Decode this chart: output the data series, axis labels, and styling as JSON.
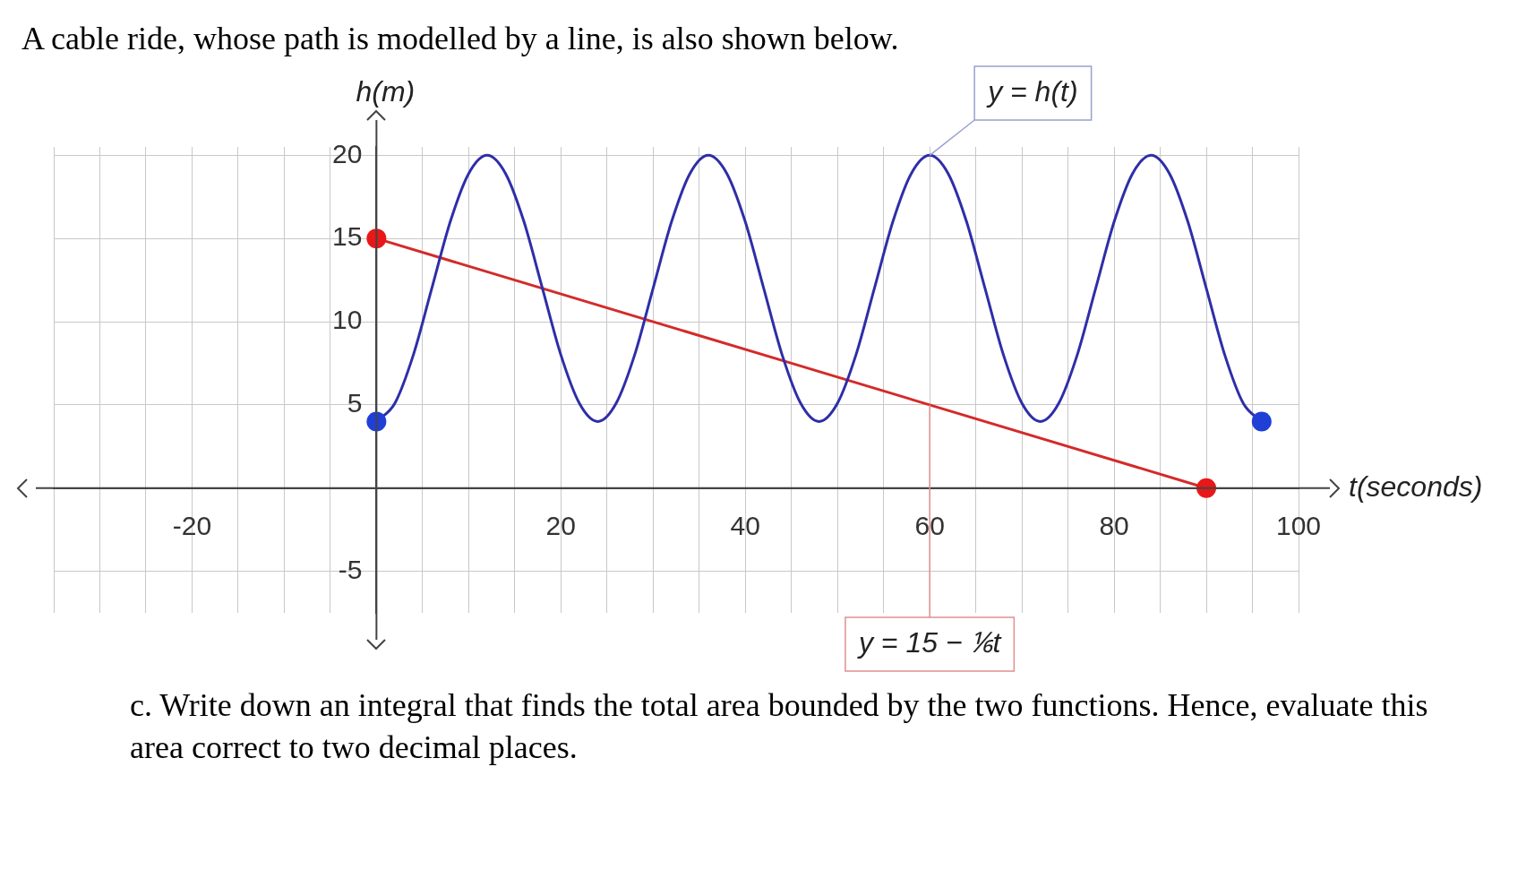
{
  "chart_data": {
    "type": "line",
    "title": "A cable ride, whose path is modelled by a line, is also shown below.",
    "xlabel": "t(seconds)",
    "ylabel": "h(m)",
    "annotations": [
      {
        "text": "y = h(t)",
        "x": 60,
        "y": 20
      },
      {
        "text": "y = 15 − ⅙t",
        "x": 60,
        "y": 5
      },
      "c. Write down an integral that finds the total area bounded by the two functions. Hence, evaluate this area correct to two decimal places."
    ],
    "series": [
      {
        "type": "line",
        "color": "#2e2ea8",
        "marker": "none",
        "x": [
          0,
          2,
          4,
          6,
          8,
          10,
          12,
          14,
          16,
          18,
          20,
          22,
          24,
          26,
          28,
          30,
          32,
          34,
          36,
          38,
          40,
          42,
          44,
          46,
          48,
          50,
          52,
          54,
          56,
          58,
          60,
          62,
          64,
          66,
          68,
          70,
          72,
          74,
          76,
          78,
          80,
          82,
          84,
          86,
          88,
          90,
          92,
          94,
          96
        ],
        "values": [
          4,
          5.1,
          8,
          12,
          16,
          18.9,
          20,
          18.9,
          16,
          12,
          8,
          5.1,
          4,
          5.1,
          8,
          12,
          16,
          18.9,
          20,
          18.9,
          16,
          12,
          8,
          5.1,
          4,
          5.1,
          8,
          12,
          16,
          18.9,
          20,
          18.9,
          16,
          12,
          8,
          5.1,
          4,
          5.1,
          8,
          12,
          16,
          18.9,
          20,
          18.9,
          16,
          12,
          8,
          5.1,
          4
        ]
      },
      {
        "type": "line",
        "color": "#d42a2a",
        "marker": "none",
        "x": [
          0,
          90
        ],
        "values": [
          15,
          0
        ]
      },
      {
        "type": "scatter",
        "color": "#1f3fd6",
        "marker": "circle",
        "x": [
          0,
          96
        ],
        "values": [
          4,
          4
        ]
      },
      {
        "type": "scatter",
        "color": "#e81818",
        "marker": "circle",
        "x": [
          0,
          90
        ],
        "values": [
          15,
          0
        ]
      }
    ],
    "xlim": [
      -35,
      100
    ],
    "ylim": [
      -7.5,
      20.5
    ],
    "xticks": [
      {
        "value": -35,
        "label": null
      },
      {
        "value": -30,
        "label": null
      },
      {
        "value": -25,
        "label": null
      },
      -20,
      {
        "value": -15,
        "label": null
      },
      {
        "value": -10,
        "label": null
      },
      {
        "value": -5,
        "label": null
      },
      {
        "value": 0,
        "label": null
      },
      {
        "value": 5,
        "label": null
      },
      {
        "value": 10,
        "label": null
      },
      {
        "value": 15,
        "label": null
      },
      20,
      {
        "value": 25,
        "label": null
      },
      {
        "value": 30,
        "label": null
      },
      {
        "value": 35,
        "label": null
      },
      40,
      {
        "value": 45,
        "label": null
      },
      {
        "value": 50,
        "label": null
      },
      {
        "value": 55,
        "label": null
      },
      60,
      {
        "value": 65,
        "label": null
      },
      {
        "value": 70,
        "label": null
      },
      {
        "value": 75,
        "label": null
      },
      80,
      {
        "value": 85,
        "label": null
      },
      {
        "value": 90,
        "label": null
      },
      {
        "value": 95,
        "label": null
      },
      100
    ],
    "yticks": [
      -5,
      {
        "value": 0,
        "label": null
      },
      5,
      10,
      15,
      20
    ],
    "grid": true,
    "legend": false
  }
}
